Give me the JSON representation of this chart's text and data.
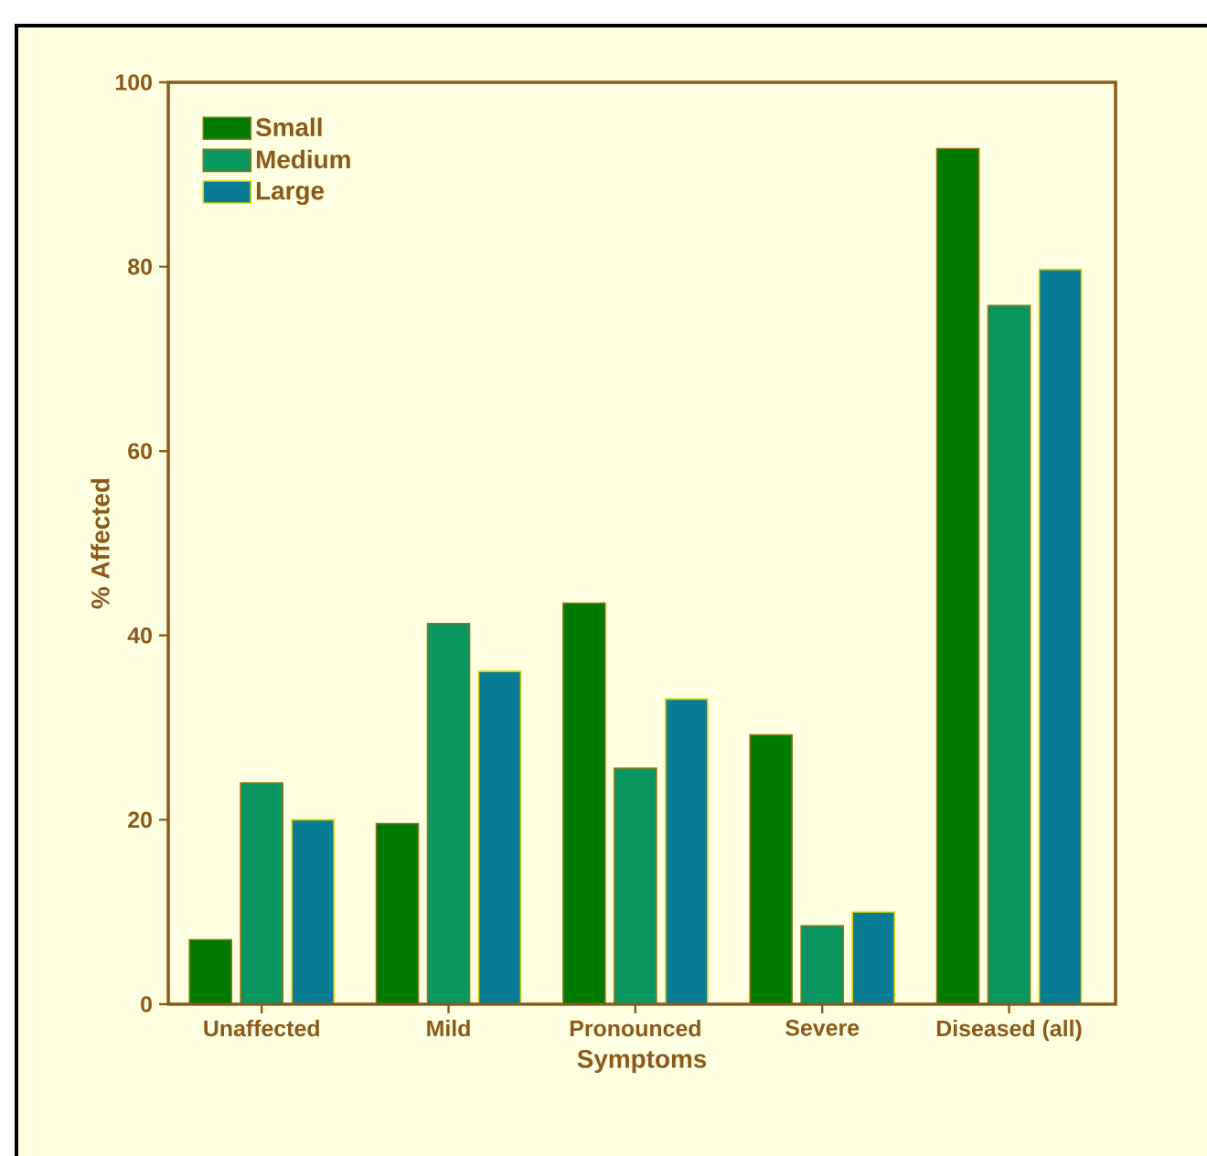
{
  "chart_data": {
    "type": "bar",
    "categories": [
      "Unaffected",
      "Mild",
      "Pronounced",
      "Severe",
      "Diseased (all)"
    ],
    "series": [
      {
        "name": "Small",
        "color": "#007a00",
        "values": [
          7,
          19.6,
          43.5,
          29.2,
          92.8
        ]
      },
      {
        "name": "Medium",
        "color": "#0a9660",
        "values": [
          24,
          41.3,
          25.6,
          8.5,
          75.8
        ]
      },
      {
        "name": "Large",
        "color": "#0a7d96",
        "values": [
          20,
          36.1,
          33.1,
          10,
          79.7
        ]
      }
    ],
    "xlabel": "Symptoms",
    "ylabel": "% Affected",
    "ylim": [
      0,
      100
    ],
    "yticks": [
      0,
      20,
      40,
      60,
      80,
      100
    ],
    "legend": "top left"
  }
}
